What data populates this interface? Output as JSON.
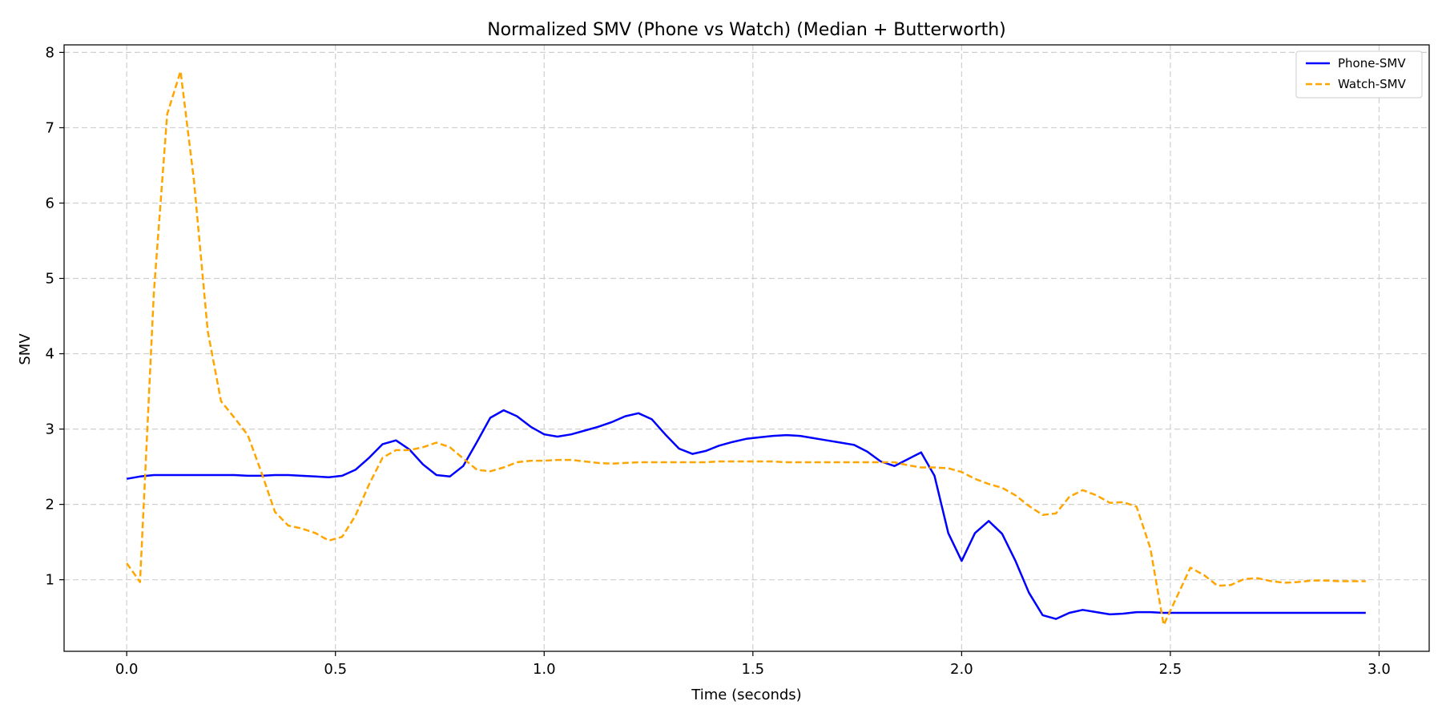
{
  "chart_data": {
    "type": "line",
    "title": "Normalized SMV (Phone vs Watch) (Median + Butterworth)",
    "xlabel": "Time (seconds)",
    "ylabel": "SMV",
    "xlim": [
      -0.15,
      3.12
    ],
    "ylim": [
      0.05,
      8.1
    ],
    "xticks": [
      0.0,
      0.5,
      1.0,
      1.5,
      2.0,
      2.5,
      3.0
    ],
    "xtick_labels": [
      "0.0",
      "0.5",
      "1.0",
      "1.5",
      "2.0",
      "2.5",
      "3.0"
    ],
    "yticks": [
      1,
      2,
      3,
      4,
      5,
      6,
      7,
      8
    ],
    "ytick_labels": [
      "1",
      "2",
      "3",
      "4",
      "5",
      "6",
      "7",
      "8"
    ],
    "grid": true,
    "legend_position": "top-right",
    "series": [
      {
        "name": "Phone-SMV",
        "color": "#0000ff",
        "style": "solid",
        "x": [
          0.0,
          0.032,
          0.065,
          0.097,
          0.129,
          0.161,
          0.194,
          0.226,
          0.258,
          0.29,
          0.323,
          0.355,
          0.387,
          0.419,
          0.452,
          0.484,
          0.516,
          0.548,
          0.581,
          0.613,
          0.645,
          0.677,
          0.71,
          0.742,
          0.774,
          0.806,
          0.839,
          0.871,
          0.903,
          0.935,
          0.968,
          1.0,
          1.032,
          1.065,
          1.097,
          1.129,
          1.161,
          1.194,
          1.226,
          1.258,
          1.29,
          1.323,
          1.355,
          1.387,
          1.419,
          1.452,
          1.484,
          1.516,
          1.548,
          1.581,
          1.613,
          1.645,
          1.677,
          1.71,
          1.742,
          1.774,
          1.806,
          1.839,
          1.871,
          1.903,
          1.935,
          1.968,
          2.0,
          2.032,
          2.065,
          2.097,
          2.129,
          2.161,
          2.194,
          2.226,
          2.258,
          2.29,
          2.323,
          2.355,
          2.387,
          2.419,
          2.452,
          2.484,
          2.516,
          2.548,
          2.581,
          2.613,
          2.645,
          2.677,
          2.71,
          2.742,
          2.774,
          2.806,
          2.839,
          2.871,
          2.903,
          2.935,
          2.968
        ],
        "values": [
          2.34,
          2.37,
          2.39,
          2.39,
          2.39,
          2.39,
          2.39,
          2.39,
          2.39,
          2.38,
          2.38,
          2.39,
          2.39,
          2.38,
          2.37,
          2.36,
          2.38,
          2.46,
          2.62,
          2.8,
          2.85,
          2.73,
          2.53,
          2.39,
          2.37,
          2.51,
          2.83,
          3.15,
          3.25,
          3.17,
          3.03,
          2.93,
          2.9,
          2.93,
          2.98,
          3.03,
          3.09,
          3.17,
          3.21,
          3.13,
          2.93,
          2.74,
          2.67,
          2.71,
          2.78,
          2.83,
          2.87,
          2.89,
          2.91,
          2.92,
          2.91,
          2.88,
          2.85,
          2.82,
          2.79,
          2.7,
          2.57,
          2.51,
          2.6,
          2.69,
          2.38,
          1.62,
          1.25,
          1.62,
          1.78,
          1.61,
          1.25,
          0.83,
          0.53,
          0.48,
          0.56,
          0.6,
          0.57,
          0.54,
          0.55,
          0.57,
          0.57,
          0.56,
          0.56,
          0.56,
          0.56,
          0.56,
          0.56,
          0.56,
          0.56,
          0.56,
          0.56,
          0.56,
          0.56,
          0.56,
          0.56,
          0.56,
          0.56
        ]
      },
      {
        "name": "Watch-SMV",
        "color": "#ffa500",
        "style": "dashed",
        "x": [
          0.0,
          0.032,
          0.065,
          0.097,
          0.129,
          0.161,
          0.194,
          0.226,
          0.258,
          0.29,
          0.323,
          0.355,
          0.387,
          0.419,
          0.452,
          0.484,
          0.516,
          0.548,
          0.581,
          0.613,
          0.645,
          0.677,
          0.71,
          0.742,
          0.774,
          0.806,
          0.839,
          0.871,
          0.903,
          0.935,
          0.968,
          1.0,
          1.032,
          1.065,
          1.097,
          1.129,
          1.161,
          1.194,
          1.226,
          1.258,
          1.29,
          1.323,
          1.355,
          1.387,
          1.419,
          1.452,
          1.484,
          1.516,
          1.548,
          1.581,
          1.613,
          1.645,
          1.677,
          1.71,
          1.742,
          1.774,
          1.806,
          1.839,
          1.871,
          1.903,
          1.935,
          1.968,
          2.0,
          2.032,
          2.065,
          2.097,
          2.129,
          2.161,
          2.194,
          2.226,
          2.258,
          2.29,
          2.323,
          2.355,
          2.387,
          2.419,
          2.452,
          2.484,
          2.516,
          2.548,
          2.581,
          2.613,
          2.645,
          2.677,
          2.71,
          2.742,
          2.774,
          2.806,
          2.839,
          2.871,
          2.903,
          2.935,
          2.968
        ],
        "values": [
          1.22,
          0.97,
          4.8,
          7.18,
          7.75,
          6.3,
          4.3,
          3.37,
          3.15,
          2.92,
          2.42,
          1.9,
          1.72,
          1.68,
          1.62,
          1.52,
          1.57,
          1.85,
          2.27,
          2.62,
          2.72,
          2.72,
          2.76,
          2.82,
          2.76,
          2.61,
          2.46,
          2.44,
          2.49,
          2.56,
          2.58,
          2.58,
          2.59,
          2.59,
          2.57,
          2.55,
          2.54,
          2.55,
          2.56,
          2.56,
          2.56,
          2.56,
          2.56,
          2.56,
          2.57,
          2.57,
          2.57,
          2.57,
          2.57,
          2.56,
          2.56,
          2.56,
          2.56,
          2.56,
          2.56,
          2.56,
          2.56,
          2.56,
          2.52,
          2.49,
          2.49,
          2.48,
          2.43,
          2.34,
          2.27,
          2.22,
          2.12,
          1.98,
          1.86,
          1.88,
          2.1,
          2.19,
          2.12,
          2.02,
          2.03,
          1.97,
          1.42,
          0.4,
          0.78,
          1.16,
          1.06,
          0.92,
          0.93,
          1.01,
          1.02,
          0.98,
          0.96,
          0.97,
          0.99,
          0.99,
          0.98,
          0.98,
          0.98
        ]
      }
    ]
  }
}
